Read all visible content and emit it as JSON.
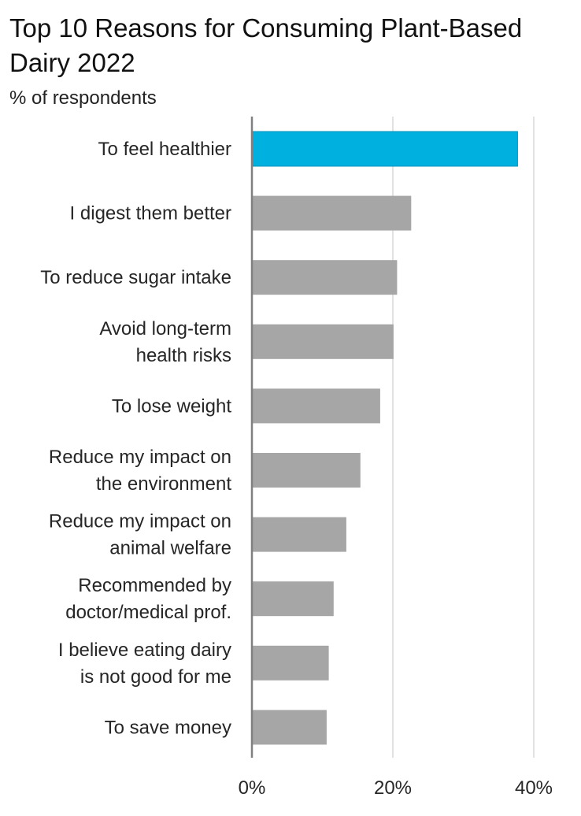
{
  "chart_data": {
    "type": "bar",
    "orientation": "horizontal",
    "title": "Top 10 Reasons for Consuming Plant-Based Dairy 2022",
    "subtitle": "% of respondents",
    "xlabel": "",
    "ylabel": "",
    "xlim": [
      0,
      40
    ],
    "x_ticks": [
      "0%",
      "20%",
      "40%"
    ],
    "grid": true,
    "categories": [
      "To feel healthier",
      "I digest them better",
      "To reduce sugar intake",
      "Avoid long-term health risks",
      "To lose weight",
      "Reduce my impact on the environment",
      "Reduce my impact on animal welfare",
      "Recommended by doctor/medical prof.",
      "I believe eating dairy is not good for me",
      "To save money"
    ],
    "category_label_lines": [
      [
        "To feel healthier"
      ],
      [
        "I digest them better"
      ],
      [
        "To reduce sugar intake"
      ],
      [
        "Avoid long-term",
        "health risks"
      ],
      [
        "To lose weight"
      ],
      [
        "Reduce my impact on",
        "the environment"
      ],
      [
        "Reduce my impact on",
        "animal welfare"
      ],
      [
        "Recommended by",
        "doctor/medical prof."
      ],
      [
        "I believe eating dairy",
        "is not good for me"
      ],
      [
        "To save money"
      ]
    ],
    "values": [
      37.7,
      22.6,
      20.6,
      20.1,
      18.2,
      15.4,
      13.4,
      11.6,
      10.9,
      10.6
    ],
    "colors": {
      "highlight": "#00b0df",
      "highlight_border": "#0090bd",
      "bar": "#a6a6a6",
      "axis": "#808080",
      "grid": "#d9d9d9"
    },
    "highlight_index": 0
  }
}
